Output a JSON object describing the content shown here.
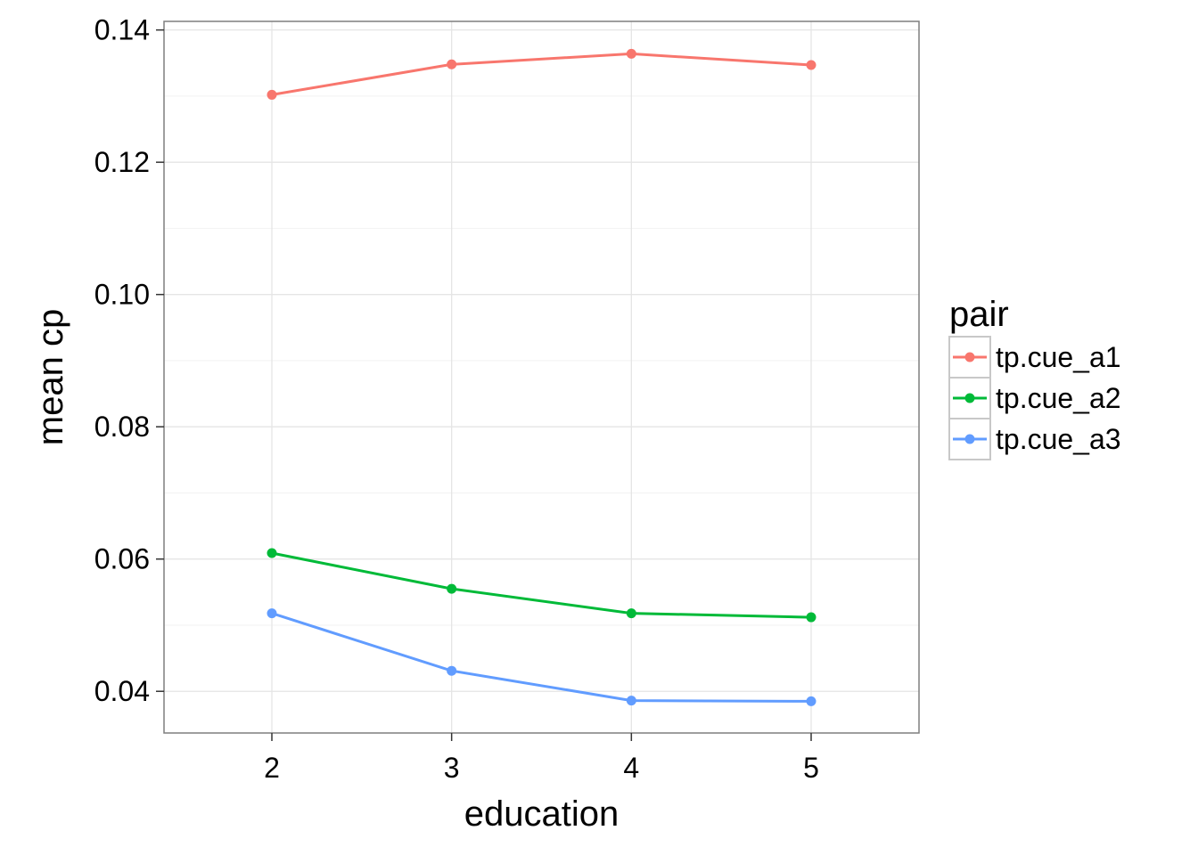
{
  "chart_data": {
    "type": "line",
    "title": "",
    "xlabel": "education",
    "ylabel": "mean cp",
    "x": [
      2,
      3,
      4,
      5
    ],
    "xlim": [
      1.4,
      5.6
    ],
    "ylim": [
      0.0337,
      0.1413
    ],
    "xticks": [
      2,
      3,
      4,
      5
    ],
    "yticks": [
      0.04,
      0.06,
      0.08,
      0.1,
      0.12,
      0.14
    ],
    "ytick_labels": [
      "0.04",
      "0.06",
      "0.08",
      "0.10",
      "0.12",
      "0.14"
    ],
    "xtick_labels": [
      "2",
      "3",
      "4",
      "5"
    ],
    "grid": true,
    "legend": {
      "title": "pair",
      "placement": "right"
    },
    "series": [
      {
        "name": "tp.cue_a1",
        "color": "#F8766D",
        "values": [
          0.1302,
          0.1348,
          0.1364,
          0.1347
        ]
      },
      {
        "name": "tp.cue_a2",
        "color": "#00BA38",
        "values": [
          0.0609,
          0.0555,
          0.0518,
          0.0512
        ]
      },
      {
        "name": "tp.cue_a3",
        "color": "#619CFF",
        "values": [
          0.0518,
          0.0431,
          0.0386,
          0.0385
        ]
      }
    ]
  }
}
